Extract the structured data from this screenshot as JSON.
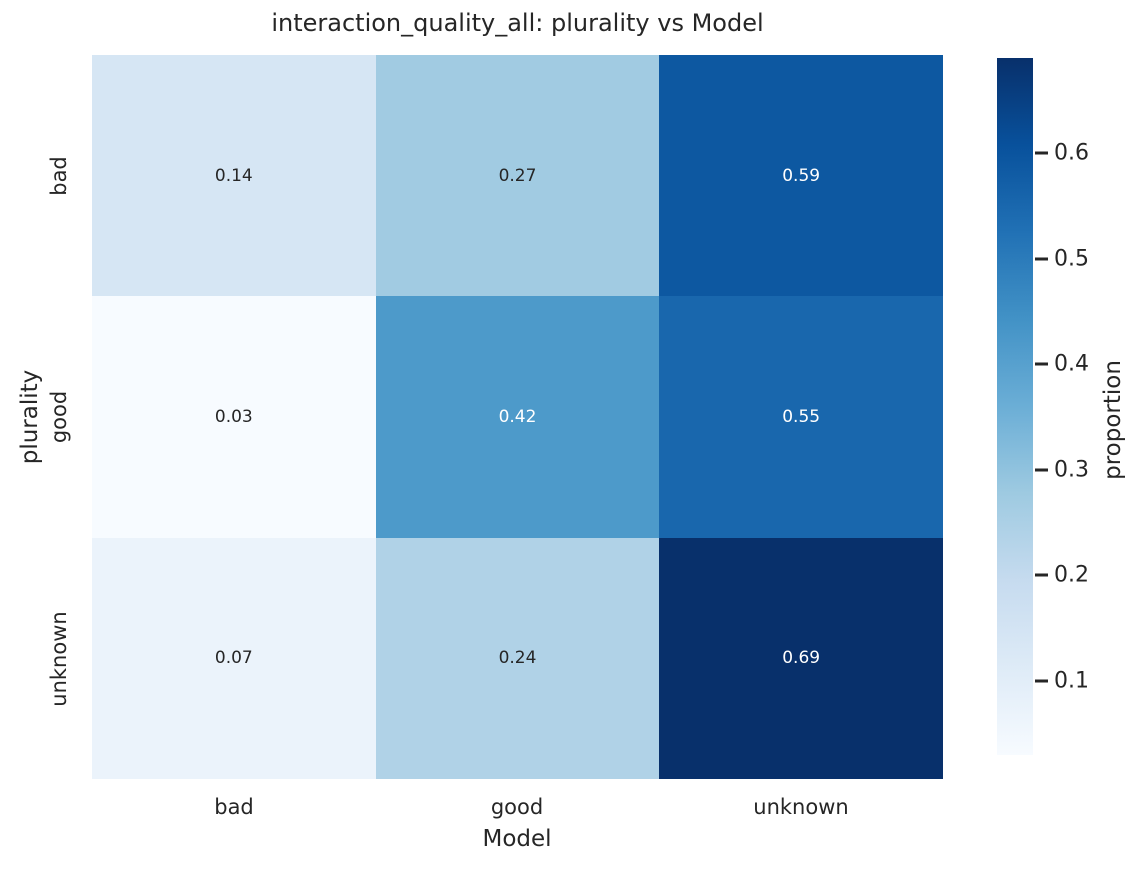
{
  "chart_data": {
    "type": "heatmap",
    "title": "interaction_quality_all: plurality vs Model",
    "xlabel": "Model",
    "ylabel": "plurality",
    "columns": [
      "bad",
      "good",
      "unknown"
    ],
    "rows": [
      "bad",
      "good",
      "unknown"
    ],
    "values": [
      [
        0.14,
        0.27,
        0.59
      ],
      [
        0.03,
        0.42,
        0.55
      ],
      [
        0.07,
        0.24,
        0.69
      ]
    ],
    "value_labels": [
      [
        "0.14",
        "0.27",
        "0.59"
      ],
      [
        "0.03",
        "0.42",
        "0.55"
      ],
      [
        "0.07",
        "0.24",
        "0.69"
      ]
    ],
    "cell_colors": [
      [
        "#d6e6f4",
        "#a1cbe2",
        "#0d58a1"
      ],
      [
        "#f7fbff",
        "#4d9aca",
        "#1967ad"
      ],
      [
        "#ebf3fb",
        "#b0d2e7",
        "#08306b"
      ]
    ],
    "annotation_text_colors": [
      [
        "#262626",
        "#262626",
        "#ffffff"
      ],
      [
        "#262626",
        "#ffffff",
        "#ffffff"
      ],
      [
        "#262626",
        "#262626",
        "#ffffff"
      ]
    ],
    "colormap": "Blues",
    "grid": false,
    "colorbar": {
      "label": "proportion",
      "vmin": 0.03,
      "vmax": 0.69,
      "tick_values": [
        0.6,
        0.5,
        0.4,
        0.3,
        0.2,
        0.1
      ],
      "tick_labels": [
        "0.6",
        "0.5",
        "0.4",
        "0.3",
        "0.2",
        "0.1"
      ],
      "gradient_stops_bottom_to_top": [
        "#f7fbff",
        "#deebf7",
        "#c6dbef",
        "#9ecae1",
        "#6baed6",
        "#4292c6",
        "#2171b5",
        "#08519c",
        "#08306b"
      ]
    }
  },
  "style": {
    "text_color": "#262626",
    "background_color": "#ffffff"
  }
}
